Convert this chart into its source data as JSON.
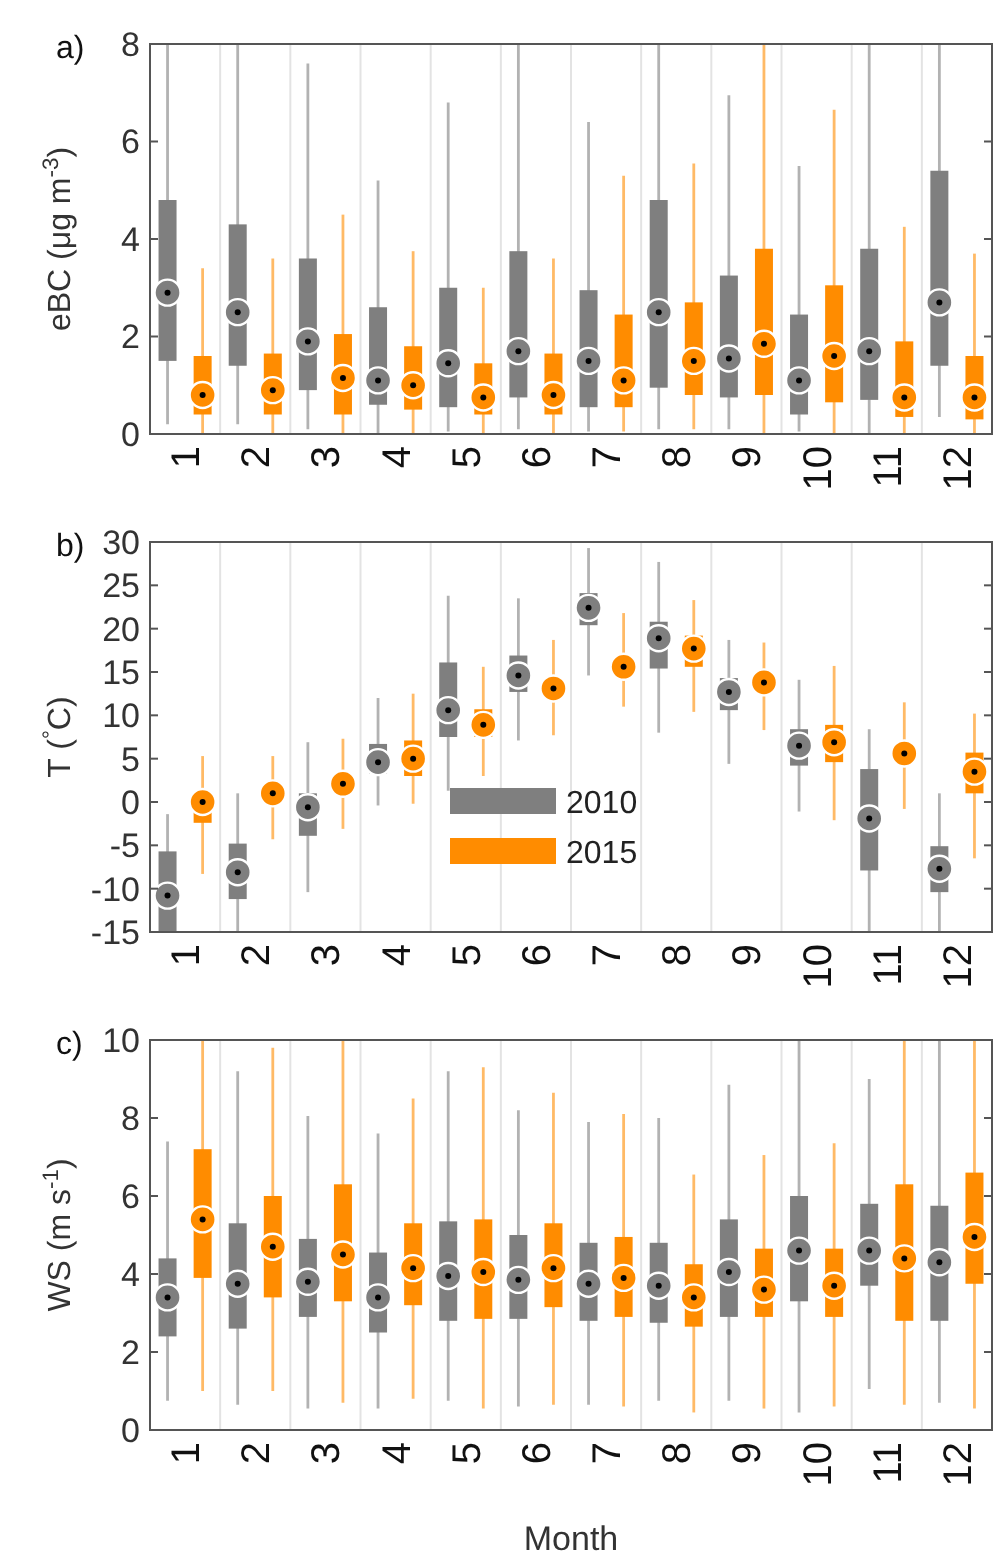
{
  "chart_data": [
    {
      "type": "box",
      "title": "a)",
      "ylabel": "eBC (μg m$^{-3}$)",
      "categories": [
        "1",
        "2",
        "3",
        "4",
        "5",
        "6",
        "7",
        "8",
        "9",
        "10",
        "11",
        "12"
      ],
      "ylim": [
        0,
        8
      ],
      "yticks": [
        0,
        2,
        4,
        6,
        8
      ],
      "grid": "x",
      "legend": false,
      "series": [
        {
          "color": "#7f7f7f",
          "boxes": [
            {
              "low": 0.2,
              "q1": 1.5,
              "median": 2.9,
              "q3": 4.8,
              "high": 8
            },
            {
              "low": 0.2,
              "q1": 1.4,
              "median": 2.5,
              "q3": 4.3,
              "high": 8
            },
            {
              "low": 0.1,
              "q1": 0.9,
              "median": 1.9,
              "q3": 3.6,
              "high": 7.6
            },
            {
              "low": 0,
              "q1": 0.6,
              "median": 1.1,
              "q3": 2.6,
              "high": 5.2
            },
            {
              "low": 0.05,
              "q1": 0.55,
              "median": 1.45,
              "q3": 3.0,
              "high": 6.8
            },
            {
              "low": 0.1,
              "q1": 0.75,
              "median": 1.7,
              "q3": 3.75,
              "high": 8
            },
            {
              "low": 0.05,
              "q1": 0.55,
              "median": 1.5,
              "q3": 2.95,
              "high": 6.4
            },
            {
              "low": 0.1,
              "q1": 0.95,
              "median": 2.5,
              "q3": 4.8,
              "high": 8
            },
            {
              "low": 0.1,
              "q1": 0.75,
              "median": 1.55,
              "q3": 3.25,
              "high": 6.95
            },
            {
              "low": 0.05,
              "q1": 0.4,
              "median": 1.1,
              "q3": 2.45,
              "high": 5.5
            },
            {
              "low": 0,
              "q1": 0.7,
              "median": 1.7,
              "q3": 3.8,
              "high": 8
            },
            {
              "low": 0.35,
              "q1": 1.4,
              "median": 2.7,
              "q3": 5.4,
              "high": 8
            }
          ]
        },
        {
          "color": "#ff8c00",
          "boxes": [
            {
              "low": 0,
              "q1": 0.4,
              "median": 0.8,
              "q3": 1.6,
              "high": 3.4
            },
            {
              "low": 0,
              "q1": 0.4,
              "median": 0.9,
              "q3": 1.65,
              "high": 3.6
            },
            {
              "low": 0,
              "q1": 0.4,
              "median": 1.15,
              "q3": 2.05,
              "high": 4.5
            },
            {
              "low": 0,
              "q1": 0.5,
              "median": 1.0,
              "q3": 1.8,
              "high": 3.75
            },
            {
              "low": 0,
              "q1": 0.4,
              "median": 0.75,
              "q3": 1.45,
              "high": 3.0
            },
            {
              "low": 0,
              "q1": 0.4,
              "median": 0.8,
              "q3": 1.65,
              "high": 3.6
            },
            {
              "low": 0.05,
              "q1": 0.55,
              "median": 1.1,
              "q3": 2.45,
              "high": 5.3
            },
            {
              "low": 0.1,
              "q1": 0.8,
              "median": 1.5,
              "q3": 2.7,
              "high": 5.55
            },
            {
              "low": 0,
              "q1": 0.8,
              "median": 1.85,
              "q3": 3.8,
              "high": 8
            },
            {
              "low": 0,
              "q1": 0.65,
              "median": 1.6,
              "q3": 3.05,
              "high": 6.65
            },
            {
              "low": 0,
              "q1": 0.35,
              "median": 0.75,
              "q3": 1.9,
              "high": 4.25
            },
            {
              "low": 0,
              "q1": 0.3,
              "median": 0.75,
              "q3": 1.6,
              "high": 3.7
            }
          ]
        }
      ]
    },
    {
      "type": "box",
      "title": "b)",
      "ylabel": "T ($^{°}$C)",
      "categories": [
        "1",
        "2",
        "3",
        "4",
        "5",
        "6",
        "7",
        "8",
        "9",
        "10",
        "11",
        "12"
      ],
      "ylim": [
        -15,
        30
      ],
      "yticks": [
        -15,
        -10,
        -5,
        0,
        5,
        10,
        15,
        20,
        25,
        30
      ],
      "grid": "x",
      "legend": "bottom",
      "series": [
        {
          "name": "2010",
          "color": "#7f7f7f",
          "boxes": [
            {
              "low": -15,
              "q1": -15,
              "median": -10.8,
              "q3": -5.7,
              "high": -1.4
            },
            {
              "low": -15,
              "q1": -11.2,
              "median": -8.1,
              "q3": -4.8,
              "high": 1.0
            },
            {
              "low": -10.4,
              "q1": -3.9,
              "median": -0.6,
              "q3": 1.0,
              "high": 6.9
            },
            {
              "low": -0.4,
              "q1": 3.3,
              "median": 4.6,
              "q3": 6.7,
              "high": 12.0
            },
            {
              "low": 1.3,
              "q1": 7.5,
              "median": 10.6,
              "q3": 16.1,
              "high": 23.8
            },
            {
              "low": 7.1,
              "q1": 12.7,
              "median": 14.6,
              "q3": 16.9,
              "high": 23.5
            },
            {
              "low": 14.6,
              "q1": 20.4,
              "median": 22.4,
              "q3": 24.1,
              "high": 29.3
            },
            {
              "low": 8.0,
              "q1": 15.4,
              "median": 18.9,
              "q3": 20.8,
              "high": 27.7
            },
            {
              "low": 4.4,
              "q1": 10.6,
              "median": 12.7,
              "q3": 14.3,
              "high": 18.7
            },
            {
              "low": -1.1,
              "q1": 4.2,
              "median": 6.5,
              "q3": 8.4,
              "high": 14.1
            },
            {
              "low": -15,
              "q1": -7.9,
              "median": -1.9,
              "q3": 3.8,
              "high": 8.4
            },
            {
              "low": -15,
              "q1": -10.4,
              "median": -7.7,
              "q3": -5.1,
              "high": 1.0
            }
          ]
        },
        {
          "name": "2015",
          "color": "#ff8c00",
          "boxes": [
            {
              "low": -8.3,
              "q1": -2.4,
              "median": 0,
              "q3": 1.0,
              "high": 5.3
            },
            {
              "low": -4.3,
              "q1": 0.2,
              "median": 1.0,
              "q3": 1.7,
              "high": 5.3
            },
            {
              "low": -3.1,
              "q1": 1.3,
              "median": 2.1,
              "q3": 2.9,
              "high": 7.3
            },
            {
              "low": -0.2,
              "q1": 3.0,
              "median": 5.0,
              "q3": 7.1,
              "high": 12.5
            },
            {
              "low": 3.0,
              "q1": 7.5,
              "median": 8.9,
              "q3": 10.7,
              "high": 15.6
            },
            {
              "low": 7.7,
              "q1": 12.7,
              "median": 13.1,
              "q3": 14.3,
              "high": 18.7
            },
            {
              "low": 11.0,
              "q1": 14.8,
              "median": 15.6,
              "q3": 16.6,
              "high": 21.8
            },
            {
              "low": 10.4,
              "q1": 15.6,
              "median": 17.7,
              "q3": 19.2,
              "high": 23.3
            },
            {
              "low": 8.3,
              "q1": 12.9,
              "median": 13.8,
              "q3": 14.6,
              "high": 18.4
            },
            {
              "low": -2.1,
              "q1": 4.6,
              "median": 6.9,
              "q3": 8.9,
              "high": 15.7
            },
            {
              "low": -0.8,
              "q1": 4.8,
              "median": 5.6,
              "q3": 6.3,
              "high": 11.5
            },
            {
              "low": -6.5,
              "q1": 1.0,
              "median": 3.5,
              "q3": 5.7,
              "high": 10.2
            }
          ]
        }
      ]
    },
    {
      "type": "box",
      "title": "c)",
      "ylabel": "WS (m s$^{-1}$)",
      "xlabel": "Month",
      "categories": [
        "1",
        "2",
        "3",
        "4",
        "5",
        "6",
        "7",
        "8",
        "9",
        "10",
        "11",
        "12"
      ],
      "ylim": [
        0,
        10
      ],
      "yticks": [
        0,
        2,
        4,
        6,
        8,
        10
      ],
      "grid": "x",
      "legend": false,
      "series": [
        {
          "color": "#7f7f7f",
          "boxes": [
            {
              "low": 0.75,
              "q1": 2.4,
              "median": 3.4,
              "q3": 4.4,
              "high": 7.4
            },
            {
              "low": 0.65,
              "q1": 2.6,
              "median": 3.75,
              "q3": 5.3,
              "high": 9.2
            },
            {
              "low": 0.55,
              "q1": 2.9,
              "median": 3.8,
              "q3": 4.9,
              "high": 8.05
            },
            {
              "low": 0.55,
              "q1": 2.5,
              "median": 3.4,
              "q3": 4.55,
              "high": 7.6
            },
            {
              "low": 0.75,
              "q1": 2.8,
              "median": 3.95,
              "q3": 5.35,
              "high": 9.2
            },
            {
              "low": 0.6,
              "q1": 2.85,
              "median": 3.85,
              "q3": 5.0,
              "high": 8.2
            },
            {
              "low": 0.65,
              "q1": 2.8,
              "median": 3.75,
              "q3": 4.8,
              "high": 7.9
            },
            {
              "low": 0.75,
              "q1": 2.75,
              "median": 3.7,
              "q3": 4.8,
              "high": 8.0
            },
            {
              "low": 0.75,
              "q1": 2.9,
              "median": 4.05,
              "q3": 5.4,
              "high": 8.85
            },
            {
              "low": 0.45,
              "q1": 3.3,
              "median": 4.6,
              "q3": 6.0,
              "high": 10
            },
            {
              "low": 1.05,
              "q1": 3.7,
              "median": 4.6,
              "q3": 5.8,
              "high": 9.0
            },
            {
              "low": 0.7,
              "q1": 2.8,
              "median": 4.3,
              "q3": 5.75,
              "high": 10
            }
          ]
        },
        {
          "color": "#ff8c00",
          "boxes": [
            {
              "low": 1.0,
              "q1": 3.9,
              "median": 5.4,
              "q3": 7.2,
              "high": 10
            },
            {
              "low": 1.0,
              "q1": 3.4,
              "median": 4.7,
              "q3": 6.0,
              "high": 9.8
            },
            {
              "low": 0.7,
              "q1": 3.3,
              "median": 4.5,
              "q3": 6.3,
              "high": 10
            },
            {
              "low": 0.8,
              "q1": 3.2,
              "median": 4.15,
              "q3": 5.3,
              "high": 8.5
            },
            {
              "low": 0.55,
              "q1": 2.85,
              "median": 4.05,
              "q3": 5.4,
              "high": 9.3
            },
            {
              "low": 0.65,
              "q1": 3.15,
              "median": 4.15,
              "q3": 5.3,
              "high": 8.65
            },
            {
              "low": 0.6,
              "q1": 2.9,
              "median": 3.9,
              "q3": 4.95,
              "high": 8.1
            },
            {
              "low": 0.45,
              "q1": 2.65,
              "median": 3.4,
              "q3": 4.25,
              "high": 6.55
            },
            {
              "low": 0.55,
              "q1": 2.9,
              "median": 3.6,
              "q3": 4.65,
              "high": 7.05
            },
            {
              "low": 0.6,
              "q1": 2.9,
              "median": 3.7,
              "q3": 4.65,
              "high": 7.35
            },
            {
              "low": 0.65,
              "q1": 2.8,
              "median": 4.4,
              "q3": 6.3,
              "high": 10
            },
            {
              "low": 0.55,
              "q1": 3.75,
              "median": 4.95,
              "q3": 6.6,
              "high": 10
            }
          ]
        }
      ]
    }
  ]
}
